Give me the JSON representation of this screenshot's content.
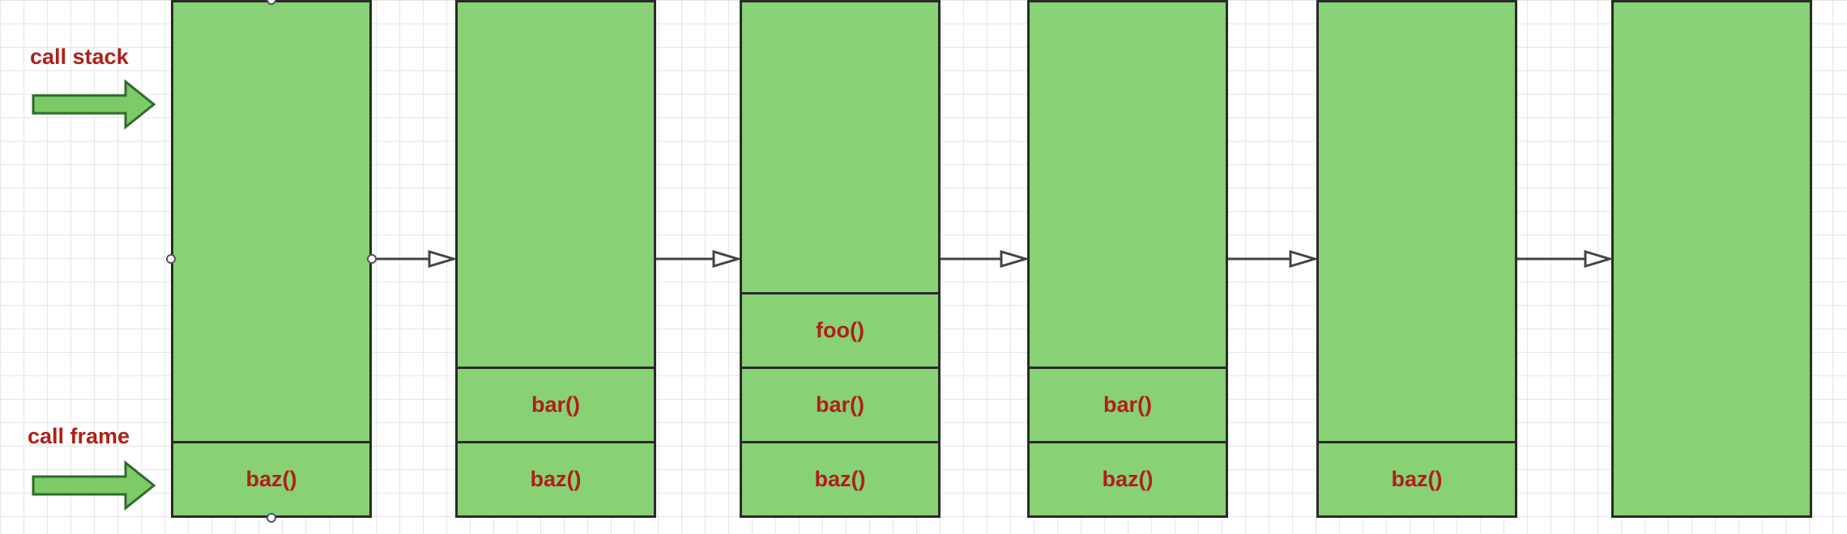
{
  "labels": {
    "call_stack": "call stack",
    "call_frame": "call frame"
  },
  "stacks": [
    {
      "frames": [
        "baz()"
      ]
    },
    {
      "frames": [
        "baz()",
        "bar()"
      ]
    },
    {
      "frames": [
        "baz()",
        "bar()",
        "foo()"
      ]
    },
    {
      "frames": [
        "baz()",
        "bar()"
      ]
    },
    {
      "frames": [
        "baz()"
      ]
    },
    {
      "frames": []
    }
  ],
  "colors": {
    "stack_fill": "#88d174",
    "label_text": "#b01f1a",
    "outline": "#2a2a2a"
  }
}
